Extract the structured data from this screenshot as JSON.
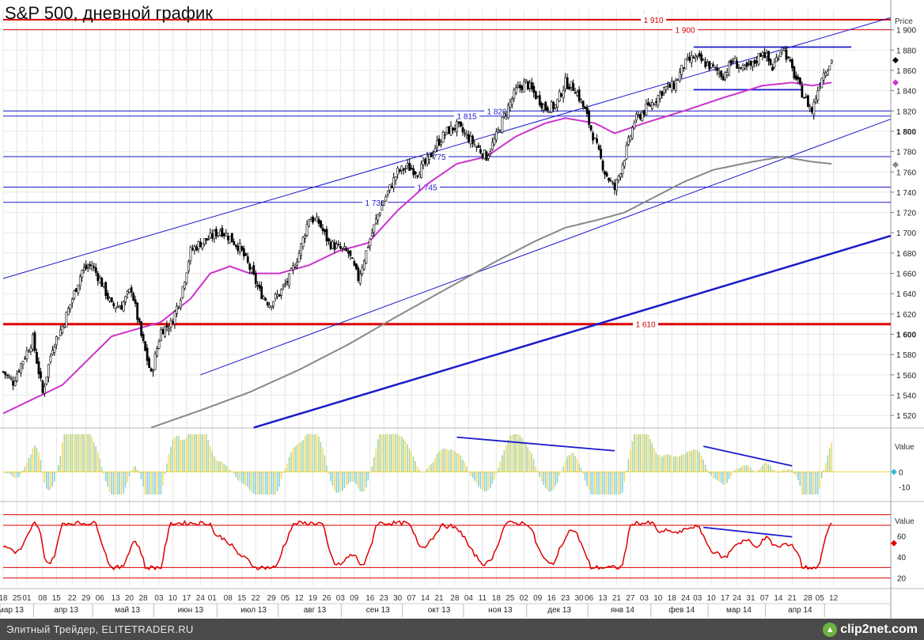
{
  "title": "S&P 500, дневной график",
  "footer": {
    "text": "Элитный Трейдер, ELITETRADER.RU",
    "logo": "clip2net.com"
  },
  "colors": {
    "candle": "#000000",
    "ma_short": "#cc33cc",
    "ma_long": "#888888",
    "channel": "#1a1acc",
    "red_level": "#dd0000",
    "osc_pos": "#a8d4a0",
    "osc_neg": "#ffd85a",
    "rsi": "#dd0000"
  },
  "axis": {
    "price_label": "Price",
    "value_label": "Value"
  },
  "chart_data": [
    {
      "type": "candlestick",
      "name": "price-panel",
      "ylabel": "Price",
      "ylim": [
        1510,
        1920
      ],
      "yticks": [
        1520,
        1540,
        1560,
        1580,
        1600,
        1620,
        1640,
        1660,
        1680,
        1700,
        1720,
        1740,
        1760,
        1780,
        1800,
        1820,
        1840,
        1860,
        1880,
        1900
      ],
      "ytick_labels": [
        "1 520",
        "1 540",
        "1 560",
        "1 580",
        "1 600",
        "1 620",
        "1 640",
        "1 660",
        "1 680",
        "1 700",
        "1 720",
        "1 740",
        "1 760",
        "1 780",
        "1 800",
        "1 820",
        "1 840",
        "1 860",
        "1 880",
        "1 900"
      ],
      "horizontal_levels": [
        {
          "value": 1910,
          "label": "1 910",
          "color": "#dd0000"
        },
        {
          "value": 1900,
          "label": "1 900",
          "color": "#dd0000"
        },
        {
          "value": 1820,
          "label": "1 820",
          "color": "#1a1acc"
        },
        {
          "value": 1815,
          "label": "1 815",
          "color": "#1a1acc"
        },
        {
          "value": 1775,
          "label": "1 775",
          "color": "#1a1acc"
        },
        {
          "value": 1745,
          "label": "1 745",
          "color": "#1a1acc"
        },
        {
          "value": 1730,
          "label": "1 730",
          "color": "#1a1acc"
        },
        {
          "value": 1610,
          "label": "1 610",
          "color": "#dd0000"
        }
      ],
      "price_anchors": [
        [
          0,
          1563
        ],
        [
          5,
          1553
        ],
        [
          10,
          1575
        ],
        [
          15,
          1595
        ],
        [
          20,
          1542
        ],
        [
          25,
          1588
        ],
        [
          30,
          1608
        ],
        [
          35,
          1635
        ],
        [
          40,
          1663
        ],
        [
          45,
          1668
        ],
        [
          50,
          1650
        ],
        [
          55,
          1628
        ],
        [
          60,
          1628
        ],
        [
          65,
          1645
        ],
        [
          70,
          1598
        ],
        [
          75,
          1560
        ],
        [
          80,
          1604
        ],
        [
          85,
          1610
        ],
        [
          90,
          1638
        ],
        [
          95,
          1682
        ],
        [
          100,
          1690
        ],
        [
          105,
          1695
        ],
        [
          110,
          1703
        ],
        [
          115,
          1695
        ],
        [
          120,
          1685
        ],
        [
          125,
          1665
        ],
        [
          130,
          1642
        ],
        [
          135,
          1630
        ],
        [
          140,
          1640
        ],
        [
          145,
          1655
        ],
        [
          150,
          1680
        ],
        [
          155,
          1715
        ],
        [
          160,
          1710
        ],
        [
          165,
          1690
        ],
        [
          170,
          1685
        ],
        [
          175,
          1680
        ],
        [
          180,
          1655
        ],
        [
          185,
          1688
        ],
        [
          190,
          1718
        ],
        [
          195,
          1740
        ],
        [
          200,
          1760
        ],
        [
          205,
          1765
        ],
        [
          210,
          1760
        ],
        [
          215,
          1770
        ],
        [
          220,
          1788
        ],
        [
          225,
          1800
        ],
        [
          230,
          1805
        ],
        [
          235,
          1795
        ],
        [
          240,
          1785
        ],
        [
          245,
          1775
        ],
        [
          250,
          1795
        ],
        [
          255,
          1820
        ],
        [
          260,
          1840
        ],
        [
          265,
          1848
        ],
        [
          270,
          1835
        ],
        [
          275,
          1823
        ],
        [
          280,
          1825
        ],
        [
          285,
          1848
        ],
        [
          290,
          1842
        ],
        [
          295,
          1820
        ],
        [
          300,
          1790
        ],
        [
          305,
          1760
        ],
        [
          310,
          1743
        ],
        [
          315,
          1775
        ],
        [
          320,
          1810
        ],
        [
          325,
          1820
        ],
        [
          330,
          1830
        ],
        [
          335,
          1842
        ],
        [
          340,
          1845
        ],
        [
          345,
          1865
        ],
        [
          350,
          1873
        ],
        [
          355,
          1868
        ],
        [
          360,
          1862
        ],
        [
          365,
          1855
        ],
        [
          370,
          1870
        ],
        [
          375,
          1860
        ],
        [
          380,
          1865
        ],
        [
          385,
          1880
        ],
        [
          390,
          1862
        ],
        [
          395,
          1885
        ],
        [
          400,
          1860
        ],
        [
          405,
          1838
        ],
        [
          410,
          1820
        ],
        [
          415,
          1855
        ],
        [
          420,
          1870
        ]
      ],
      "ma_short_anchors": [
        [
          0,
          1522
        ],
        [
          30,
          1550
        ],
        [
          55,
          1598
        ],
        [
          80,
          1612
        ],
        [
          95,
          1635
        ],
        [
          105,
          1660
        ],
        [
          115,
          1667
        ],
        [
          125,
          1660
        ],
        [
          140,
          1660
        ],
        [
          155,
          1668
        ],
        [
          170,
          1682
        ],
        [
          185,
          1690
        ],
        [
          200,
          1722
        ],
        [
          215,
          1748
        ],
        [
          230,
          1768
        ],
        [
          245,
          1775
        ],
        [
          260,
          1795
        ],
        [
          275,
          1808
        ],
        [
          285,
          1813
        ],
        [
          300,
          1808
        ],
        [
          310,
          1798
        ],
        [
          325,
          1808
        ],
        [
          345,
          1820
        ],
        [
          365,
          1833
        ],
        [
          385,
          1845
        ],
        [
          400,
          1848
        ],
        [
          410,
          1845
        ],
        [
          420,
          1848
        ]
      ],
      "ma_long_anchors": [
        [
          75,
          1508
        ],
        [
          100,
          1525
        ],
        [
          125,
          1543
        ],
        [
          150,
          1565
        ],
        [
          175,
          1590
        ],
        [
          200,
          1618
        ],
        [
          225,
          1645
        ],
        [
          250,
          1672
        ],
        [
          270,
          1692
        ],
        [
          285,
          1705
        ],
        [
          300,
          1712
        ],
        [
          315,
          1720
        ],
        [
          330,
          1735
        ],
        [
          345,
          1750
        ],
        [
          360,
          1762
        ],
        [
          380,
          1770
        ],
        [
          395,
          1775
        ],
        [
          410,
          1770
        ],
        [
          420,
          1768
        ]
      ],
      "trendlines": [
        {
          "name": "channel-upper",
          "from": [
            0,
            1655
          ],
          "to": [
            450,
            1912
          ],
          "color": "#1a1acc"
        },
        {
          "name": "channel-lower",
          "from": [
            100,
            1560
          ],
          "to": [
            450,
            1812
          ],
          "color": "#1a1acc"
        },
        {
          "name": "support-bold",
          "from": [
            127,
            1508
          ],
          "to": [
            450,
            1697
          ],
          "color": "#1a1acc"
        },
        {
          "name": "range-top",
          "from": [
            350,
            1883
          ],
          "to": [
            430,
            1883
          ],
          "color": "#1a1acc"
        },
        {
          "name": "range-bottom",
          "from": [
            350,
            1841
          ],
          "to": [
            405,
            1841
          ],
          "color": "#1a1acc"
        }
      ]
    },
    {
      "type": "bar",
      "name": "oscillator-panel",
      "ylabel": "Value",
      "ylim": [
        -16,
        27
      ],
      "yticks": [
        0,
        -10
      ],
      "ytick_labels": [
        "0",
        "-10"
      ],
      "divergence_lines": [
        {
          "from": [
            230,
            23
          ],
          "to": [
            310,
            14
          ]
        },
        {
          "from": [
            355,
            17
          ],
          "to": [
            400,
            4
          ]
        }
      ]
    },
    {
      "type": "line",
      "name": "rsi-panel",
      "ylabel": "Value",
      "ylim": [
        13,
        88
      ],
      "yticks": [
        60,
        40,
        20
      ],
      "ytick_labels": [
        "60",
        "40",
        "20"
      ],
      "levels": [
        80,
        70,
        30,
        20
      ],
      "divergence_lines": [
        {
          "from": [
            355,
            68
          ],
          "to": [
            400,
            59
          ]
        }
      ]
    }
  ],
  "x_axis": {
    "day_labels": [
      [
        0,
        "18"
      ],
      [
        7,
        "25"
      ],
      [
        12,
        "01"
      ],
      [
        20,
        "08"
      ],
      [
        27,
        "15"
      ],
      [
        35,
        "22"
      ],
      [
        42,
        "29"
      ],
      [
        49,
        "06"
      ],
      [
        57,
        "13"
      ],
      [
        64,
        "20"
      ],
      [
        71,
        "28"
      ],
      [
        79,
        "03"
      ],
      [
        86,
        "10"
      ],
      [
        93,
        "17"
      ],
      [
        100,
        "24"
      ],
      [
        106,
        "01"
      ],
      [
        114,
        "08"
      ],
      [
        121,
        "15"
      ],
      [
        128,
        "22"
      ],
      [
        136,
        "29"
      ],
      [
        143,
        "05"
      ],
      [
        150,
        "12"
      ],
      [
        157,
        "19"
      ],
      [
        164,
        "26"
      ],
      [
        171,
        "03"
      ],
      [
        178,
        "09"
      ],
      [
        186,
        "16"
      ],
      [
        193,
        "23"
      ],
      [
        200,
        "30"
      ],
      [
        207,
        "07"
      ],
      [
        214,
        "14"
      ],
      [
        221,
        "21"
      ],
      [
        229,
        "28"
      ],
      [
        236,
        "04"
      ],
      [
        243,
        "11"
      ],
      [
        250,
        "18"
      ],
      [
        257,
        "25"
      ],
      [
        264,
        "02"
      ],
      [
        271,
        "09"
      ],
      [
        278,
        "16"
      ],
      [
        285,
        "23"
      ],
      [
        292,
        "30"
      ],
      [
        297,
        "06"
      ],
      [
        304,
        "13"
      ],
      [
        311,
        "21"
      ],
      [
        318,
        "27"
      ],
      [
        325,
        "03"
      ],
      [
        332,
        "10"
      ],
      [
        339,
        "18"
      ],
      [
        346,
        "24"
      ],
      [
        352,
        "03"
      ],
      [
        359,
        "10"
      ],
      [
        366,
        "17"
      ],
      [
        372,
        "24"
      ],
      [
        379,
        "31"
      ],
      [
        386,
        "07"
      ],
      [
        393,
        "14"
      ],
      [
        400,
        "21"
      ],
      [
        408,
        "28"
      ],
      [
        414,
        "05"
      ],
      [
        421,
        "12"
      ]
    ],
    "month_labels": [
      [
        4,
        "мар 13"
      ],
      [
        32,
        "апр 13"
      ],
      [
        63,
        "май 13"
      ],
      [
        95,
        "июн 13"
      ],
      [
        127,
        "июл 13"
      ],
      [
        158,
        "авг 13"
      ],
      [
        190,
        "сен 13"
      ],
      [
        221,
        "окт 13"
      ],
      [
        252,
        "ноя 13"
      ],
      [
        282,
        "дек 13"
      ],
      [
        314,
        "янв 14"
      ],
      [
        344,
        "фев 14"
      ],
      [
        373,
        "мар 14"
      ],
      [
        404,
        "апр 14"
      ]
    ]
  }
}
